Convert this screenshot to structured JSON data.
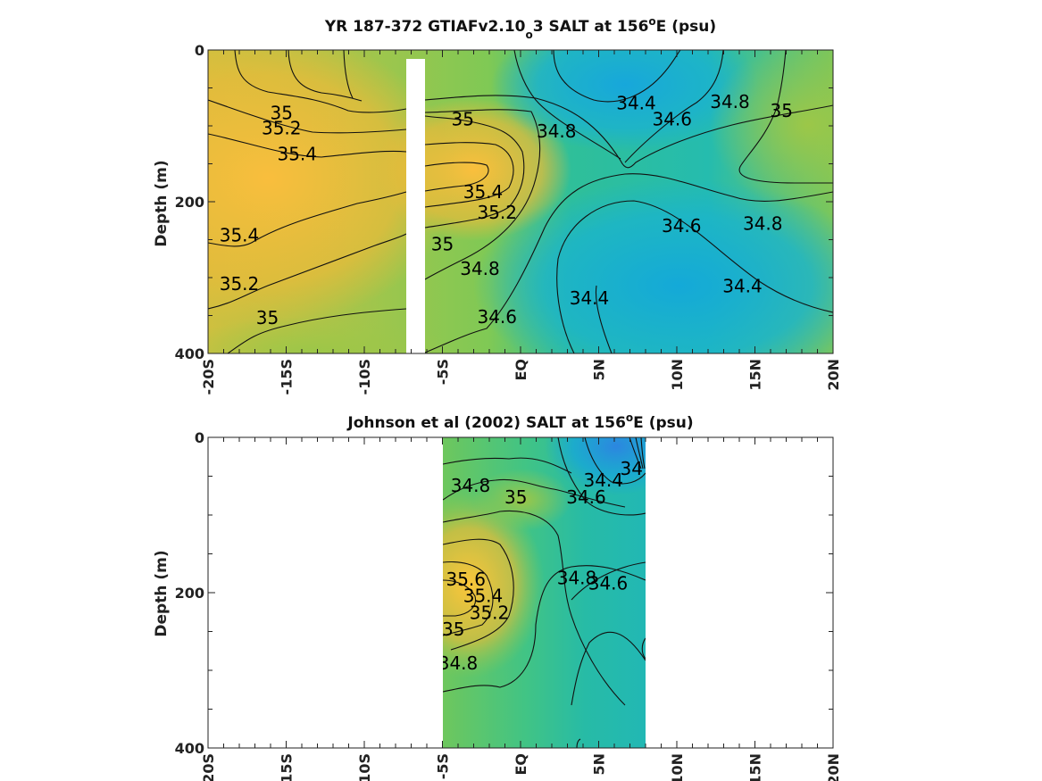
{
  "chart_data": [
    {
      "type": "heatmap",
      "subtype": "filled contour section",
      "title": "YR 187-372 GTIAFv2.10_o3 SALT at 156°E (psu)",
      "title_parts": {
        "a": "YR 187-372 GTIAFv2.10",
        "sub": "o",
        "b": "3 SALT at 156",
        "sup": "o",
        "c": "E (psu)"
      },
      "ylabel": "Depth (m)",
      "ylim": [
        0,
        400
      ],
      "y_reversed": true,
      "xlim": [
        -20,
        20
      ],
      "x_ticks": [
        -20,
        -15,
        -10,
        -5,
        0,
        5,
        10,
        15,
        20
      ],
      "x_tick_labels": [
        "-20S",
        "-15S",
        "-10S",
        "-5S",
        "EQ",
        "5N",
        "10N",
        "15N",
        "20N"
      ],
      "y_ticks": [
        0,
        200,
        400
      ],
      "y_tick_labels": [
        "0",
        "200",
        "400"
      ],
      "missing_band_lat": [
        -7.2,
        -6.1
      ],
      "colormap": [
        "#f9c33c",
        "#e8b93a",
        "#98c94a",
        "#3dc286",
        "#24b9b5",
        "#12b0d8",
        "#2d8be0"
      ],
      "contour_labels": [
        {
          "text": "35",
          "lat": -15.3,
          "depth": 83
        },
        {
          "text": "35.2",
          "lat": -15.3,
          "depth": 103
        },
        {
          "text": "35.4",
          "lat": -14.3,
          "depth": 137
        },
        {
          "text": "35.4",
          "lat": -18.0,
          "depth": 244
        },
        {
          "text": "35.2",
          "lat": -18.0,
          "depth": 308
        },
        {
          "text": "35",
          "lat": -16.2,
          "depth": 353
        },
        {
          "text": "35",
          "lat": -3.7,
          "depth": 91
        },
        {
          "text": "34.8",
          "lat": 2.3,
          "depth": 107
        },
        {
          "text": "34.4",
          "lat": 7.4,
          "depth": 70
        },
        {
          "text": "34.6",
          "lat": 9.7,
          "depth": 91
        },
        {
          "text": "34.8",
          "lat": 13.4,
          "depth": 68
        },
        {
          "text": "35",
          "lat": 16.7,
          "depth": 80
        },
        {
          "text": "35.4",
          "lat": -2.4,
          "depth": 187
        },
        {
          "text": "35.2",
          "lat": -1.5,
          "depth": 214
        },
        {
          "text": "35",
          "lat": -5.0,
          "depth": 256
        },
        {
          "text": "34.8",
          "lat": -2.6,
          "depth": 288
        },
        {
          "text": "34.6",
          "lat": -1.5,
          "depth": 352
        },
        {
          "text": "34.4",
          "lat": 4.4,
          "depth": 327
        },
        {
          "text": "34.6",
          "lat": 10.3,
          "depth": 232
        },
        {
          "text": "34.8",
          "lat": 15.5,
          "depth": 229
        },
        {
          "text": "34.4",
          "lat": 14.2,
          "depth": 311
        }
      ]
    },
    {
      "type": "heatmap",
      "subtype": "filled contour section (observations)",
      "title": "Johnson et al (2002) SALT at 156°E (psu)",
      "title_parts": {
        "a": "Johnson et al (2002) SALT at 156",
        "sup": "o",
        "b": "E (psu)"
      },
      "ylabel": "Depth (m)",
      "ylim": [
        0,
        400
      ],
      "y_reversed": true,
      "xlim": [
        -20,
        20
      ],
      "data_lat_range": [
        -5,
        8
      ],
      "x_ticks": [
        -20,
        -15,
        -10,
        -5,
        0,
        5,
        10,
        15,
        20
      ],
      "x_tick_labels": [
        "-20S",
        "-15S",
        "-10S",
        "-5S",
        "EQ",
        "5N",
        "10N",
        "15N",
        "20N"
      ],
      "y_ticks": [
        0,
        200,
        400
      ],
      "y_tick_labels": [
        "0",
        "200",
        "400"
      ],
      "contour_labels": [
        {
          "text": "34.8",
          "lat": -3.2,
          "depth": 62
        },
        {
          "text": "35",
          "lat": -0.3,
          "depth": 77
        },
        {
          "text": "34.4",
          "lat": 5.3,
          "depth": 55
        },
        {
          "text": "34.6",
          "lat": 4.2,
          "depth": 77
        },
        {
          "text": "34",
          "lat": 7.1,
          "depth": 40
        },
        {
          "text": "35.6",
          "lat": -3.5,
          "depth": 183
        },
        {
          "text": "35.4",
          "lat": -2.4,
          "depth": 204
        },
        {
          "text": "35.2",
          "lat": -2.0,
          "depth": 226
        },
        {
          "text": "35",
          "lat": -4.3,
          "depth": 247
        },
        {
          "text": "34.8",
          "lat": 3.6,
          "depth": 181
        },
        {
          "text": "34.6",
          "lat": 5.6,
          "depth": 188
        },
        {
          "text": "34.8",
          "lat": -4.0,
          "depth": 291
        }
      ]
    }
  ]
}
